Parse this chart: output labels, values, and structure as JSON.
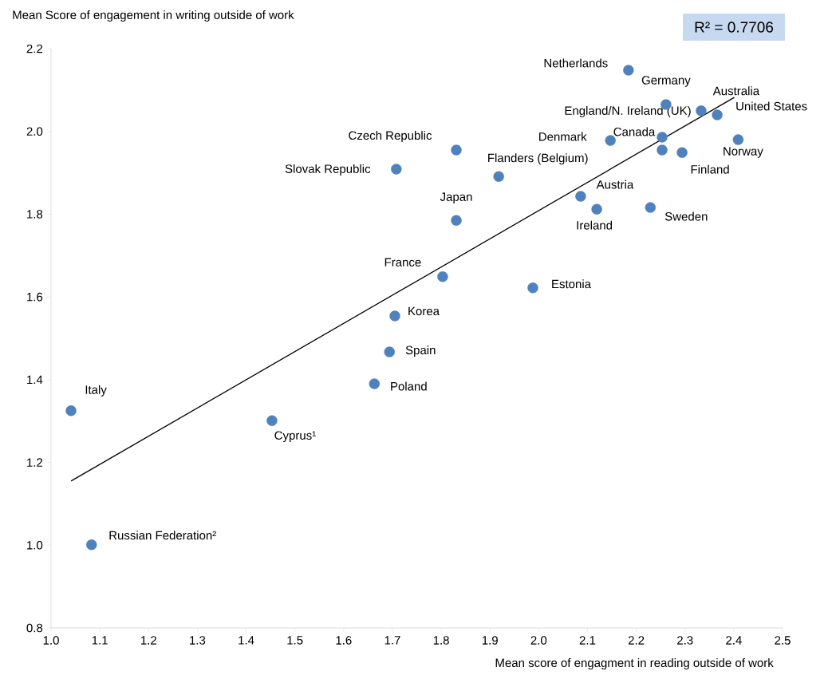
{
  "chart_data": {
    "type": "scatter",
    "ylabel": "Mean Score of engagement in writing outside  of work",
    "xlabel": "Mean score of engagment in reading outside of work",
    "xlim": [
      1.0,
      2.5
    ],
    "ylim": [
      0.8,
      2.2
    ],
    "xticks": [
      {
        "value": 1.0,
        "label": "1.0"
      },
      {
        "value": 1.1,
        "label": "1.1"
      },
      {
        "value": 1.2,
        "label": "1.2"
      },
      {
        "value": 1.3,
        "label": "1.3"
      },
      {
        "value": 1.4,
        "label": "1.4"
      },
      {
        "value": 1.5,
        "label": "1.5"
      },
      {
        "value": 1.6,
        "label": "1.6"
      },
      {
        "value": 1.7,
        "label": "1.7"
      },
      {
        "value": 1.8,
        "label": "1.8"
      },
      {
        "value": 1.9,
        "label": "1.9"
      },
      {
        "value": 2.0,
        "label": "2.0"
      },
      {
        "value": 2.1,
        "label": "2.1"
      },
      {
        "value": 2.2,
        "label": "2.2"
      },
      {
        "value": 2.3,
        "label": "2.3"
      },
      {
        "value": 2.4,
        "label": "2.4"
      },
      {
        "value": 2.5,
        "label": "2.5"
      }
    ],
    "yticks": [
      {
        "value": 0.8,
        "label": "0.8"
      },
      {
        "value": 1.0,
        "label": "1.0"
      },
      {
        "value": 1.2,
        "label": "1.2"
      },
      {
        "value": 1.4,
        "label": "1.4"
      },
      {
        "value": 1.6,
        "label": "1.6"
      },
      {
        "value": 1.8,
        "label": "1.8"
      },
      {
        "value": 2.0,
        "label": "2.0"
      },
      {
        "value": 2.2,
        "label": "2.2"
      }
    ],
    "marker": "circle",
    "series": [
      {
        "color": "#4f81bd",
        "x": [
          2.184,
          2.261,
          2.333,
          2.253,
          2.366,
          2.147,
          2.409,
          2.253,
          2.294,
          1.831,
          1.708,
          1.918,
          2.086,
          1.831,
          2.119,
          2.229,
          1.803,
          1.988,
          1.705,
          1.694,
          1.663,
          1.041,
          1.453,
          1.083
        ],
        "values": [
          2.148,
          2.065,
          2.05,
          1.986,
          2.04,
          1.978,
          1.98,
          1.955,
          1.949,
          1.955,
          1.909,
          1.891,
          1.843,
          1.785,
          1.812,
          1.816,
          1.649,
          1.622,
          1.554,
          1.467,
          1.39,
          1.325,
          1.301,
          1.001
        ]
      },
      {
        "type": "line",
        "color": "#000000",
        "marker": "none",
        "x": [
          1.041,
          2.401
        ],
        "values": [
          1.155,
          2.082
        ]
      }
    ],
    "annotations": [
      {
        "text": "Netherlands",
        "x": 2.184,
        "y": 2.148
      },
      {
        "text": "Germany",
        "x": 2.261,
        "y": 2.065
      },
      {
        "text": "Australia",
        "x": 2.333,
        "y": 2.05
      },
      {
        "text": "England/N. Ireland (UK)",
        "x": 2.253,
        "y": 1.986
      },
      {
        "text": "United States",
        "x": 2.366,
        "y": 2.04
      },
      {
        "text": "Denmark",
        "x": 2.147,
        "y": 1.978
      },
      {
        "text": "Norway",
        "x": 2.409,
        "y": 1.98
      },
      {
        "text": "Canada",
        "x": 2.253,
        "y": 1.955
      },
      {
        "text": "Finland",
        "x": 2.294,
        "y": 1.949
      },
      {
        "text": "Czech Republic",
        "x": 1.831,
        "y": 1.955
      },
      {
        "text": "Slovak Republic",
        "x": 1.708,
        "y": 1.909
      },
      {
        "text": "Flanders (Belgium)",
        "x": 1.918,
        "y": 1.891
      },
      {
        "text": "Austria",
        "x": 2.086,
        "y": 1.843
      },
      {
        "text": "Japan",
        "x": 1.831,
        "y": 1.785
      },
      {
        "text": "Ireland",
        "x": 2.119,
        "y": 1.812
      },
      {
        "text": "Sweden",
        "x": 2.229,
        "y": 1.816
      },
      {
        "text": "France",
        "x": 1.803,
        "y": 1.649
      },
      {
        "text": "Estonia",
        "x": 1.988,
        "y": 1.622
      },
      {
        "text": "Korea",
        "x": 1.705,
        "y": 1.554
      },
      {
        "text": "Spain",
        "x": 1.694,
        "y": 1.467
      },
      {
        "text": "Poland",
        "x": 1.663,
        "y": 1.39
      },
      {
        "text": "Italy",
        "x": 1.041,
        "y": 1.325
      },
      {
        "text": "Cyprus¹",
        "x": 1.453,
        "y": 1.301
      },
      {
        "text": "Russian Federation²",
        "x": 1.083,
        "y": 1.001
      },
      "R² = 0.7706"
    ]
  }
}
